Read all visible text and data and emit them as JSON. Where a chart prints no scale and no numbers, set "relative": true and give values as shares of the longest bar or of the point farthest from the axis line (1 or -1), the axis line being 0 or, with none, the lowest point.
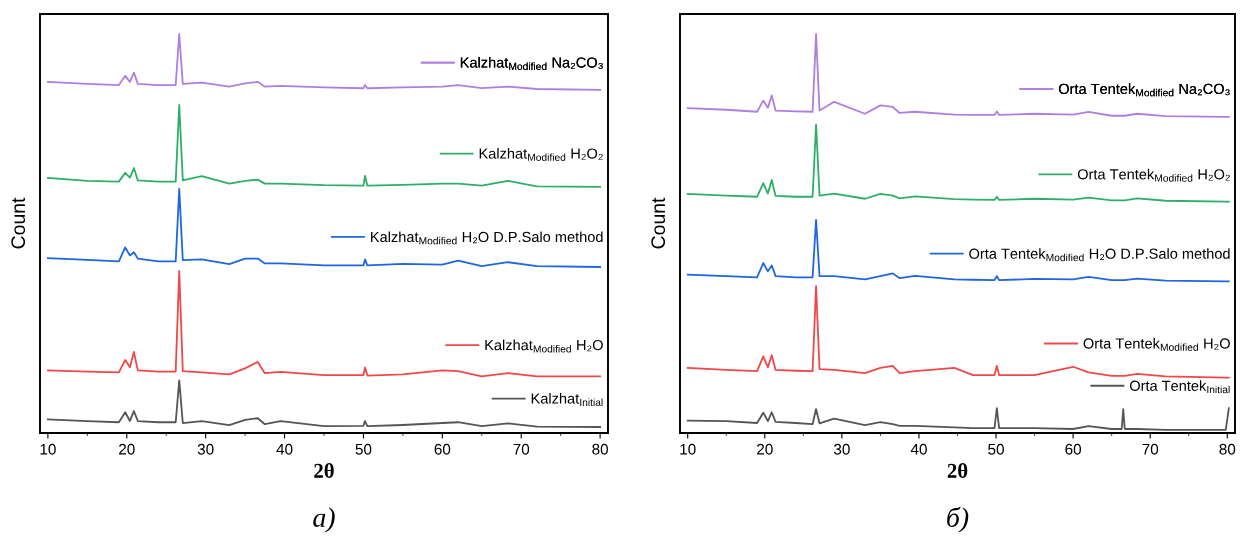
{
  "chart_data": [
    {
      "type": "line",
      "relative": true,
      "xlabel": "2θ",
      "ylabel": "Count",
      "xlim": [
        9,
        81
      ],
      "xticks": [
        10,
        20,
        30,
        40,
        50,
        60,
        70,
        80
      ],
      "tick_labels": "x",
      "grid": false,
      "legend": "right",
      "marker": "none",
      "line_style": "solid",
      "annotations": [
        "а)"
      ],
      "x": [
        10,
        15,
        19,
        19.8,
        20.4,
        20.9,
        21.4,
        24,
        26.2,
        26.65,
        27.1,
        29.5,
        33,
        35,
        36.6,
        37.5,
        39.5,
        45,
        50.0,
        50.2,
        50.5,
        55,
        60,
        62,
        65,
        68.3,
        72,
        80
      ],
      "series": [
        {
          "name": "Kalzhat$_{Initial}$",
          "color": "#555555",
          "values": [
            0.034,
            0.03,
            0.027,
            0.052,
            0.03,
            0.055,
            0.03,
            0.027,
            0.027,
            0.132,
            0.025,
            0.03,
            0.02,
            0.033,
            0.037,
            0.022,
            0.03,
            0.017,
            0.018,
            0.03,
            0.017,
            0.02,
            0.025,
            0.027,
            0.017,
            0.024,
            0.016,
            0.015
          ]
        },
        {
          "name": "Kalzhat$_{Modified}$ H₂O",
          "color": "#f04848",
          "values": [
            0.157,
            0.154,
            0.152,
            0.183,
            0.165,
            0.203,
            0.157,
            0.154,
            0.154,
            0.406,
            0.155,
            0.152,
            0.147,
            0.162,
            0.178,
            0.15,
            0.153,
            0.145,
            0.145,
            0.164,
            0.144,
            0.147,
            0.157,
            0.155,
            0.142,
            0.15,
            0.142,
            0.142
          ]
        },
        {
          "name": "Kalzhat$_{Modified}$ H₂O D.P.Salo method",
          "color": "#1f66e0",
          "values": [
            0.438,
            0.434,
            0.43,
            0.465,
            0.445,
            0.453,
            0.437,
            0.43,
            0.43,
            0.612,
            0.433,
            0.435,
            0.423,
            0.437,
            0.437,
            0.425,
            0.425,
            0.42,
            0.42,
            0.435,
            0.42,
            0.424,
            0.422,
            0.432,
            0.418,
            0.428,
            0.418,
            0.416
          ]
        },
        {
          "name": "Kalzhat$_{Modified}$ H₂O₂",
          "color": "#2fae6a",
          "values": [
            0.639,
            0.632,
            0.63,
            0.652,
            0.64,
            0.664,
            0.633,
            0.63,
            0.63,
            0.822,
            0.633,
            0.644,
            0.625,
            0.632,
            0.635,
            0.625,
            0.625,
            0.621,
            0.62,
            0.644,
            0.62,
            0.622,
            0.625,
            0.625,
            0.62,
            0.632,
            0.618,
            0.617
          ]
        },
        {
          "name": "Kalzhat$_{Modified}$ Na₂CO₃",
          "color": "#b07ee0",
          "values": [
            0.88,
            0.875,
            0.872,
            0.895,
            0.88,
            0.903,
            0.875,
            0.872,
            0.872,
            1.0,
            0.875,
            0.878,
            0.868,
            0.876,
            0.88,
            0.868,
            0.87,
            0.866,
            0.864,
            0.872,
            0.864,
            0.866,
            0.868,
            0.872,
            0.864,
            0.868,
            0.862,
            0.86
          ]
        }
      ]
    },
    {
      "type": "line",
      "relative": true,
      "xlabel": "2θ",
      "ylabel": "Count",
      "xlim": [
        9,
        81
      ],
      "xticks": [
        10,
        20,
        30,
        40,
        50,
        60,
        70,
        80
      ],
      "tick_labels": "x",
      "grid": false,
      "legend": "right",
      "marker": "none",
      "line_style": "solid",
      "annotations": [
        "б)"
      ],
      "x": [
        10,
        15,
        19,
        19.8,
        20.4,
        20.9,
        21.4,
        24,
        26.2,
        26.65,
        27.1,
        29,
        33,
        35,
        36.6,
        37.5,
        39.5,
        44.6,
        47,
        49.8,
        50.1,
        50.4,
        55,
        60,
        62,
        65,
        66.3,
        66.5,
        66.7,
        68.3,
        72,
        79.8,
        80.2
      ],
      "series": [
        {
          "name": "Orta Tentek$_{Initial}$",
          "color": "#555555",
          "values": [
            0.031,
            0.03,
            0.025,
            0.051,
            0.03,
            0.052,
            0.028,
            0.025,
            0.022,
            0.06,
            0.024,
            0.036,
            0.02,
            0.027,
            0.022,
            0.018,
            0.018,
            0.014,
            0.012,
            0.012,
            0.062,
            0.012,
            0.012,
            0.01,
            0.017,
            0.01,
            0.01,
            0.06,
            0.01,
            0.01,
            0.008,
            0.008,
            0.062
          ]
        },
        {
          "name": "Orta Tentek$_{Modified}$ H₂O",
          "color": "#f04848",
          "values": [
            0.163,
            0.158,
            0.155,
            0.192,
            0.165,
            0.195,
            0.158,
            0.156,
            0.155,
            0.368,
            0.16,
            0.158,
            0.15,
            0.163,
            0.168,
            0.15,
            0.155,
            0.163,
            0.145,
            0.145,
            0.168,
            0.145,
            0.145,
            0.166,
            0.152,
            0.143,
            0.143,
            0.143,
            0.143,
            0.148,
            0.142,
            0.139,
            0.139
          ]
        },
        {
          "name": "Orta Tentek$_{Modified}$ H₂O D.P.Salo method",
          "color": "#1f66e0",
          "values": [
            0.397,
            0.393,
            0.39,
            0.426,
            0.405,
            0.42,
            0.393,
            0.39,
            0.39,
            0.534,
            0.393,
            0.393,
            0.385,
            0.393,
            0.4,
            0.388,
            0.394,
            0.385,
            0.384,
            0.383,
            0.393,
            0.383,
            0.386,
            0.385,
            0.391,
            0.383,
            0.383,
            0.383,
            0.383,
            0.387,
            0.382,
            0.38,
            0.38
          ]
        },
        {
          "name": "Orta Tentek$_{Modified}$ H₂O₂",
          "color": "#2fae6a",
          "values": [
            0.599,
            0.595,
            0.592,
            0.626,
            0.6,
            0.634,
            0.594,
            0.592,
            0.592,
            0.773,
            0.595,
            0.6,
            0.587,
            0.599,
            0.595,
            0.588,
            0.593,
            0.586,
            0.585,
            0.584,
            0.592,
            0.584,
            0.587,
            0.585,
            0.59,
            0.583,
            0.583,
            0.583,
            0.583,
            0.588,
            0.582,
            0.58,
            0.58
          ]
        },
        {
          "name": "Orta Tentek$_{Modified}$ Na₂CO₃",
          "color": "#b07ee0",
          "values": [
            0.814,
            0.81,
            0.805,
            0.833,
            0.815,
            0.846,
            0.808,
            0.806,
            0.805,
            1.0,
            0.808,
            0.83,
            0.8,
            0.821,
            0.817,
            0.802,
            0.805,
            0.798,
            0.797,
            0.797,
            0.806,
            0.797,
            0.8,
            0.798,
            0.805,
            0.795,
            0.795,
            0.795,
            0.795,
            0.8,
            0.794,
            0.792,
            0.792
          ]
        }
      ]
    }
  ]
}
